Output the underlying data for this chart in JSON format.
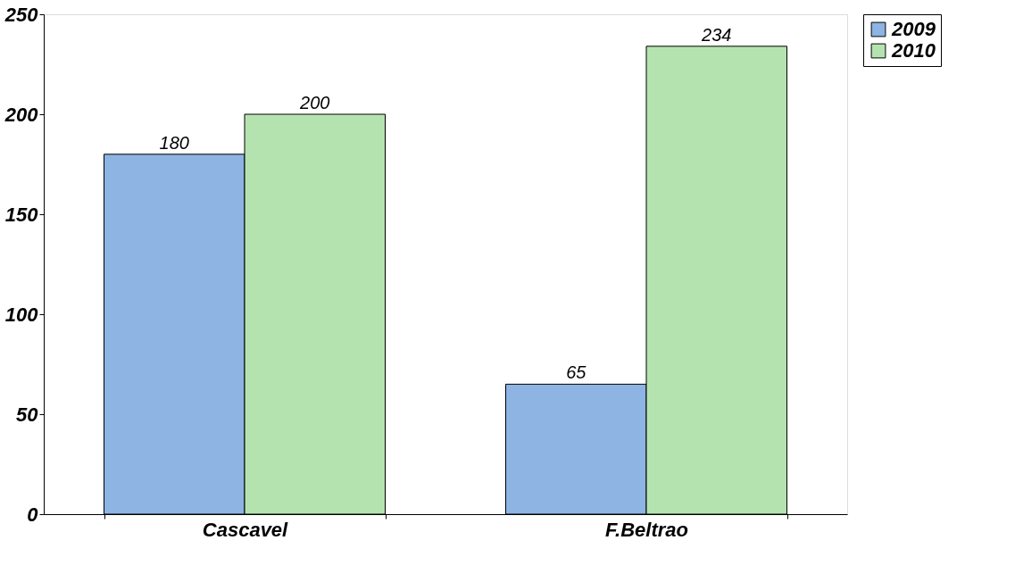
{
  "chart_data": {
    "type": "bar",
    "categories": [
      "Cascavel",
      "F.Beltrao"
    ],
    "series": [
      {
        "name": "2009",
        "color": "#8db4e2",
        "values": [
          180,
          65
        ]
      },
      {
        "name": "2010",
        "color": "#b5e3b0",
        "values": [
          200,
          234
        ]
      }
    ],
    "ylim": [
      0,
      250
    ],
    "yticks": [
      0,
      50,
      100,
      150,
      200,
      250
    ],
    "grid": false,
    "legend": "right",
    "data_labels": true
  }
}
